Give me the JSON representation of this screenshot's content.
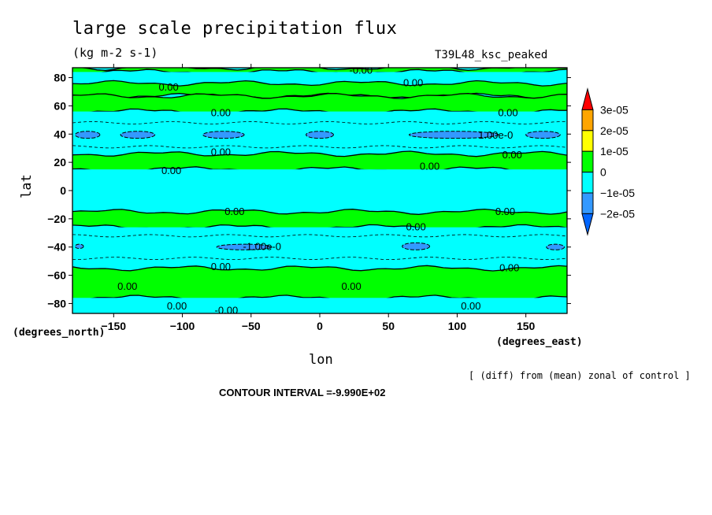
{
  "chart_data": {
    "type": "heatmap",
    "title": "large scale precipitation flux",
    "units": "(kg m-2 s-1)",
    "model_label": "T39L48_ksc_peaked",
    "xlabel": "lon",
    "ylabel": "lat",
    "x_units": "(degrees_east)",
    "y_units": "(degrees_north)",
    "xlim": [
      -180,
      180
    ],
    "ylim": [
      -87,
      87
    ],
    "x_ticks": [
      -150,
      -100,
      -50,
      0,
      50,
      100,
      150
    ],
    "y_ticks": [
      80,
      60,
      40,
      20,
      0,
      -20,
      -40,
      -60,
      -80
    ],
    "note": "[ (diff) from (mean) zonal of control ]",
    "contour_interval": "CONTOUR INTERVAL =-9.990E+02",
    "colorbar": {
      "levels": [
        "3e-05",
        "2e-05",
        "1e-05",
        "0",
        "−1e-05",
        "−2e-05"
      ],
      "colors": [
        "#ff0000",
        "#ffa500",
        "#ffff00",
        "#00ff00",
        "#00ffff",
        "#3399ff",
        "#0066ff"
      ]
    },
    "latitude_bands": [
      {
        "from": 87,
        "to": 84,
        "category": "0 to 1e-05",
        "color": "#00ff00"
      },
      {
        "from": 84,
        "to": 76,
        "category": "-1e-05 to 0",
        "color": "#00ffff"
      },
      {
        "from": 76,
        "to": 67,
        "category": "0 to 1e-05",
        "color": "#00ff00"
      },
      {
        "from": 67,
        "to": 56,
        "category": "0 to 1e-05",
        "color": "#00ff00"
      },
      {
        "from": 56,
        "to": 26,
        "category": "-1e-05 to 0",
        "color": "#00ffff"
      },
      {
        "from": 26,
        "to": 15,
        "category": "0 to 1e-05",
        "color": "#00ff00"
      },
      {
        "from": 15,
        "to": -15,
        "category": "-1e-05 to 0",
        "color": "#00ffff"
      },
      {
        "from": -15,
        "to": -26,
        "category": "0 to 1e-05",
        "color": "#00ff00"
      },
      {
        "from": -26,
        "to": -55,
        "category": "-1e-05 to 0",
        "color": "#00ffff"
      },
      {
        "from": -55,
        "to": -76,
        "category": "0 to 1e-05",
        "color": "#00ff00"
      },
      {
        "from": -76,
        "to": -87,
        "category": "-1e-05 to 0",
        "color": "#00ffff"
      }
    ],
    "negative_patches": [
      {
        "lon": [
          -178,
          -160
        ],
        "lat": [
          37,
          42
        ]
      },
      {
        "lon": [
          -145,
          -120
        ],
        "lat": [
          37,
          42
        ]
      },
      {
        "lon": [
          -85,
          -55
        ],
        "lat": [
          37,
          42
        ]
      },
      {
        "lon": [
          -10,
          10
        ],
        "lat": [
          37,
          42
        ]
      },
      {
        "lon": [
          65,
          130
        ],
        "lat": [
          37,
          42
        ]
      },
      {
        "lon": [
          150,
          175
        ],
        "lat": [
          37,
          42
        ]
      },
      {
        "lon": [
          -178,
          -172
        ],
        "lat": [
          -41,
          -38
        ]
      },
      {
        "lon": [
          -75,
          -35
        ],
        "lat": [
          -42,
          -38
        ]
      },
      {
        "lon": [
          60,
          80
        ],
        "lat": [
          -42,
          -37
        ]
      },
      {
        "lon": [
          165,
          178
        ],
        "lat": [
          -42,
          -38
        ]
      }
    ],
    "contour_labels": [
      {
        "text": "0.00",
        "lon": -110,
        "lat": 73
      },
      {
        "text": "0.00",
        "lon": 68,
        "lat": 76
      },
      {
        "text": "-0.00",
        "lon": 30,
        "lat": 85
      },
      {
        "text": "0.00",
        "lon": -72,
        "lat": 55
      },
      {
        "text": "0.00",
        "lon": 137,
        "lat": 55
      },
      {
        "text": "1.00e-0",
        "lon": 128,
        "lat": 39
      },
      {
        "text": "0.00",
        "lon": -72,
        "lat": 27
      },
      {
        "text": "0.00",
        "lon": 140,
        "lat": 25
      },
      {
        "text": "0.00",
        "lon": -108,
        "lat": 14
      },
      {
        "text": "0.00",
        "lon": 80,
        "lat": 17
      },
      {
        "text": "0.00",
        "lon": -62,
        "lat": -15
      },
      {
        "text": "0.00",
        "lon": 135,
        "lat": -15
      },
      {
        "text": "0.00",
        "lon": 70,
        "lat": -26
      },
      {
        "text": "-1.00e-0",
        "lon": -42,
        "lat": -40
      },
      {
        "text": "0.00",
        "lon": -72,
        "lat": -54
      },
      {
        "text": "0.00",
        "lon": 138,
        "lat": -55
      },
      {
        "text": "0.00",
        "lon": -140,
        "lat": -68
      },
      {
        "text": "0.00",
        "lon": 23,
        "lat": -68
      },
      {
        "text": "0.00",
        "lon": -104,
        "lat": -82
      },
      {
        "text": "-0.00",
        "lon": -68,
        "lat": -85
      },
      {
        "text": "0.00",
        "lon": 110,
        "lat": -82
      }
    ]
  }
}
